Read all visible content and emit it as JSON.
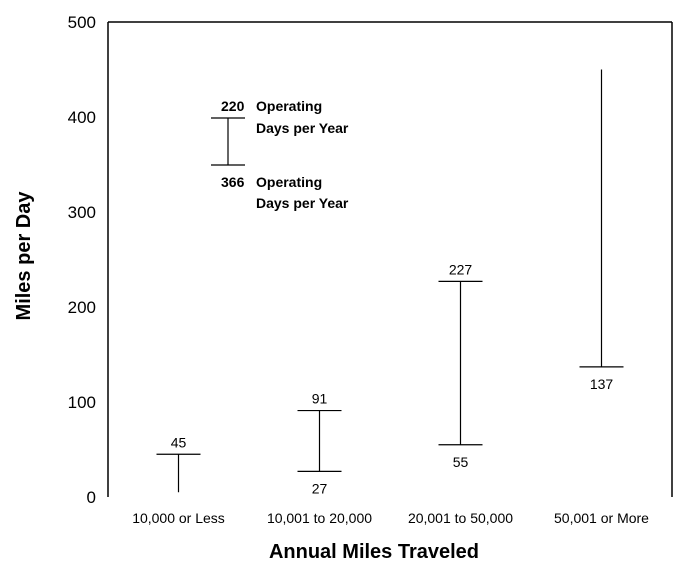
{
  "chart_data": {
    "type": "range-bar",
    "xlabel": "Annual Miles Traveled",
    "ylabel": "Miles per Day",
    "ylim": [
      0,
      500
    ],
    "yticks": [
      0,
      100,
      200,
      300,
      400,
      500
    ],
    "categories": [
      "10,000 or Less",
      "10,001 to 20,000",
      "20,001 to 50,000",
      "50,001 or More"
    ],
    "ranges": [
      {
        "low": 5,
        "high": 45,
        "low_label": "",
        "high_label": "45"
      },
      {
        "low": 27,
        "high": 91,
        "low_label": "27",
        "high_label": "91"
      },
      {
        "low": 55,
        "high": 227,
        "low_label": "55",
        "high_label": "227"
      },
      {
        "low": 137,
        "high": 450,
        "low_label": "137",
        "high_label": ""
      }
    ],
    "legend": {
      "top_value": "220",
      "top_line1": "Operating",
      "top_line2": "Days per Year",
      "bottom_value": "366",
      "bottom_line1": "Operating",
      "bottom_line2": "Days per Year"
    },
    "grid": false
  }
}
